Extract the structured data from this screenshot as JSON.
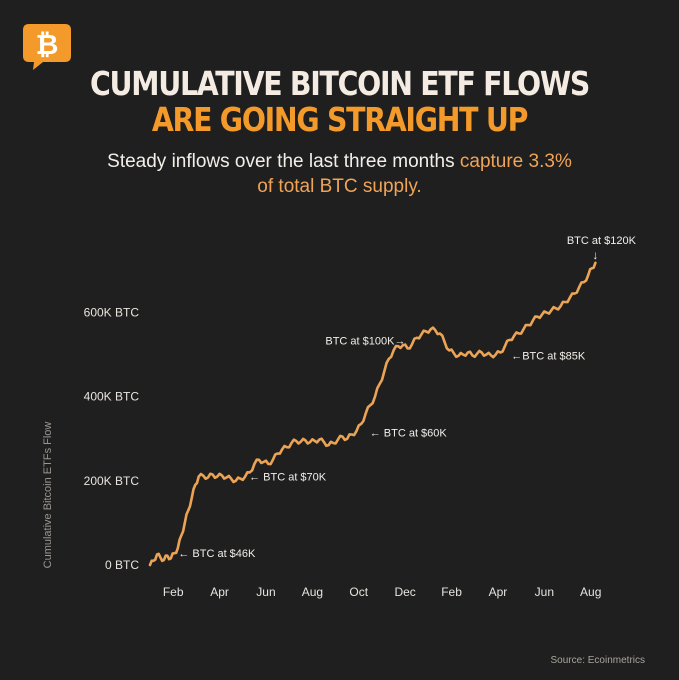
{
  "header": {
    "title_line1": "CUMULATIVE BITCOIN ETF FLOWS",
    "title_line2": "ARE GOING STRAIGHT UP",
    "subtitle_part1": "Steady inflows over the last three months ",
    "subtitle_highlight1": "capture 3.3%",
    "subtitle_highlight2": "of total BTC supply.",
    "logo_icon": "bitcoin-chat-bubble-icon"
  },
  "footer": {
    "source": "Source: Ecoinmetrics"
  },
  "colors": {
    "background": "#1f1f1f",
    "line": "#eba456",
    "accent": "#f39a2a",
    "text": "#f2efe9"
  },
  "chart_data": {
    "type": "line",
    "title": "Cumulative Bitcoin ETF Flows",
    "ylabel": "Cumulative Bitcoin ETFs Flow",
    "xlabel": "",
    "ylim": [
      0,
      720000
    ],
    "yticks": [
      {
        "value": 0,
        "label": "0 BTC"
      },
      {
        "value": 200000,
        "label": "200K BTC"
      },
      {
        "value": 400000,
        "label": "400K BTC"
      },
      {
        "value": 600000,
        "label": "600K BTC"
      }
    ],
    "xlim": [
      0,
      19.4
    ],
    "xticks": [
      {
        "value": 1,
        "label": "Feb"
      },
      {
        "value": 3,
        "label": "Apr"
      },
      {
        "value": 5,
        "label": "Jun"
      },
      {
        "value": 7,
        "label": "Aug"
      },
      {
        "value": 9,
        "label": "Oct"
      },
      {
        "value": 11,
        "label": "Dec"
      },
      {
        "value": 13,
        "label": "Feb"
      },
      {
        "value": 15,
        "label": "Apr"
      },
      {
        "value": 17,
        "label": "Jun"
      },
      {
        "value": 19,
        "label": "Aug"
      }
    ],
    "x": [
      0,
      0.15,
      0.3,
      0.45,
      0.6,
      0.75,
      0.9,
      1.05,
      1.2,
      1.35,
      1.5,
      1.65,
      1.8,
      1.95,
      2.1,
      2.3,
      2.5,
      2.7,
      2.9,
      3.1,
      3.3,
      3.5,
      3.7,
      3.9,
      4.1,
      4.3,
      4.5,
      4.7,
      4.9,
      5.1,
      5.3,
      5.5,
      5.7,
      5.9,
      6.1,
      6.3,
      6.5,
      6.7,
      6.9,
      7.1,
      7.3,
      7.5,
      7.7,
      7.9,
      8.1,
      8.3,
      8.5,
      8.7,
      8.9,
      9.1,
      9.3,
      9.5,
      9.7,
      9.9,
      10.1,
      10.3,
      10.5,
      10.7,
      10.9,
      11.1,
      11.3,
      11.5,
      11.7,
      11.9,
      12.1,
      12.3,
      12.5,
      12.7,
      12.9,
      13.1,
      13.3,
      13.5,
      13.7,
      13.9,
      14.1,
      14.3,
      14.5,
      14.7,
      14.9,
      15.1,
      15.3,
      15.5,
      15.7,
      15.9,
      16.1,
      16.3,
      16.5,
      16.7,
      16.9,
      17.1,
      17.3,
      17.5,
      17.7,
      17.9,
      18.1,
      18.3,
      18.5,
      18.7,
      18.9,
      19.05,
      19.2
    ],
    "values": [
      0,
      10000,
      25000,
      18000,
      12000,
      22000,
      16000,
      28000,
      40000,
      70000,
      100000,
      130000,
      160000,
      190000,
      210000,
      212000,
      208000,
      215000,
      210000,
      213000,
      208000,
      205000,
      200000,
      205000,
      210000,
      220000,
      240000,
      250000,
      245000,
      240000,
      250000,
      265000,
      275000,
      280000,
      290000,
      295000,
      293000,
      296000,
      292000,
      295000,
      298000,
      292000,
      285000,
      290000,
      298000,
      305000,
      300000,
      310000,
      318000,
      335000,
      360000,
      380000,
      400000,
      430000,
      460000,
      490000,
      510000,
      520000,
      522000,
      515000,
      525000,
      540000,
      548000,
      555000,
      560000,
      558000,
      550000,
      530000,
      510000,
      503000,
      497000,
      500000,
      505000,
      498000,
      502000,
      505000,
      500000,
      498000,
      500000,
      505000,
      520000,
      535000,
      545000,
      550000,
      560000,
      570000,
      580000,
      590000,
      595000,
      600000,
      605000,
      610000,
      615000,
      625000,
      635000,
      645000,
      660000,
      672000,
      690000,
      705000,
      718000
    ],
    "annotations": [
      {
        "x": 1.05,
        "y": 28000,
        "label": "← BTC at $46K",
        "anchor": "left"
      },
      {
        "x": 4.1,
        "y": 210000,
        "label": "← BTC at $70K",
        "anchor": "left"
      },
      {
        "x": 9.3,
        "y": 315000,
        "label": "← BTC at $60K",
        "anchor": "left"
      },
      {
        "x": 11.1,
        "y": 533000,
        "label": "BTC at $100K→",
        "anchor": "right"
      },
      {
        "x": 15.4,
        "y": 498000,
        "label": "←BTC at $85K",
        "anchor": "left"
      },
      {
        "x": 19.2,
        "y": 718000,
        "label": "BTC at $120K",
        "anchor": "above"
      }
    ]
  }
}
